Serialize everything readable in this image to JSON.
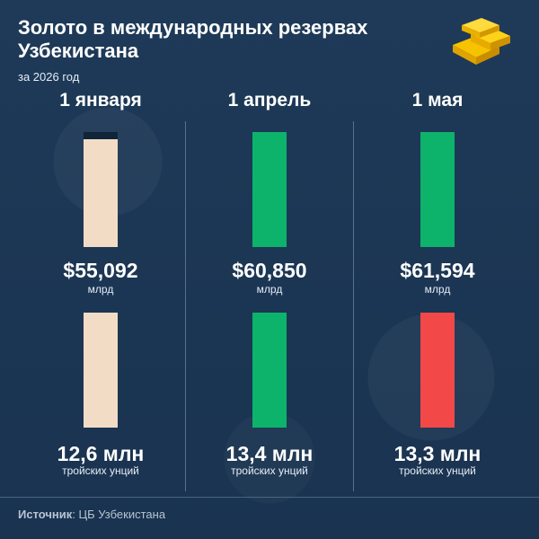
{
  "header": {
    "title": "Золото в международных резервах Узбекистана",
    "subtitle": "за 2026 год",
    "icon": "gold-bars-icon"
  },
  "colors": {
    "background": "#1b3653",
    "neutral": "#f3dcc6",
    "increase": "#0db36b",
    "decrease": "#f24848",
    "track": "#10243a"
  },
  "chart_data": [
    {
      "type": "bar",
      "categories": [
        "1 января",
        "1 апрель",
        "1 мая"
      ],
      "values": [
        55092,
        60850,
        61594
      ],
      "value_labels": [
        "$55,092",
        "$60,850",
        "$61,594"
      ],
      "unit": "млрд",
      "fill_fraction": [
        0.94,
        1.0,
        1.0
      ],
      "bar_colors": [
        "#f3dcc6",
        "#0db36b",
        "#0db36b"
      ]
    },
    {
      "type": "bar",
      "categories": [
        "1 января",
        "1 апрель",
        "1 мая"
      ],
      "values": [
        12.6,
        13.4,
        13.3
      ],
      "value_labels": [
        "12,6 млн",
        "13,4 млн",
        "13,3 млн"
      ],
      "unit": "тройских унций",
      "fill_fraction": [
        1.0,
        1.0,
        1.0
      ],
      "bar_colors": [
        "#f3dcc6",
        "#0db36b",
        "#f24848"
      ]
    }
  ],
  "footer": {
    "source_label": "Источник",
    "source_text": ": ЦБ Узбекистана"
  }
}
